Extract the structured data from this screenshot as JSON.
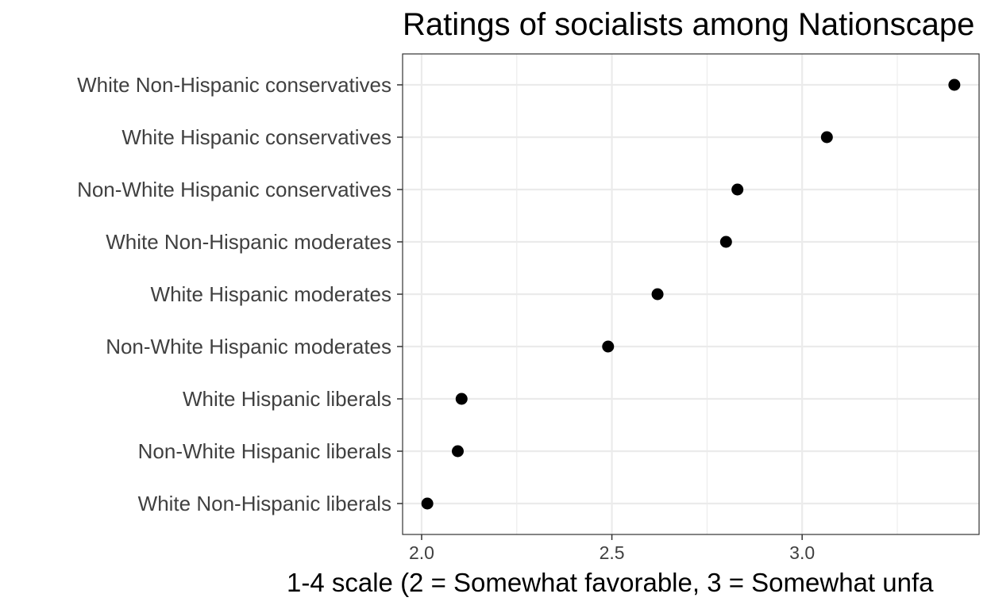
{
  "chart_data": {
    "type": "scatter",
    "title": "Ratings of socialists among Nationscape",
    "xlabel": "1-4 scale (2 = Somewhat favorable, 3 = Somewhat unfa",
    "ylabel": "",
    "xlim": [
      1.95,
      3.465
    ],
    "x_ticks": [
      2.0,
      2.5,
      3.0
    ],
    "x_tick_labels": [
      "2.0",
      "2.5",
      "3.0"
    ],
    "x_minor_ticks": [
      2.25,
      2.75,
      3.25
    ],
    "grid": true,
    "points": [
      {
        "category": "White Non-Hispanic conservatives",
        "value": 3.4
      },
      {
        "category": "White Hispanic conservatives",
        "value": 3.065
      },
      {
        "category": "Non-White Hispanic conservatives",
        "value": 2.83
      },
      {
        "category": "White Non-Hispanic moderates",
        "value": 2.8
      },
      {
        "category": "White Hispanic moderates",
        "value": 2.62
      },
      {
        "category": "Non-White Hispanic moderates",
        "value": 2.49
      },
      {
        "category": "White Hispanic liberals",
        "value": 2.105
      },
      {
        "category": "Non-White Hispanic liberals",
        "value": 2.095
      },
      {
        "category": "White Non-Hispanic liberals",
        "value": 2.015
      }
    ],
    "colors": {
      "point": "#000000",
      "grid": "#ebebeb",
      "panel_border": "#333333",
      "tick_label": "#404040"
    }
  }
}
